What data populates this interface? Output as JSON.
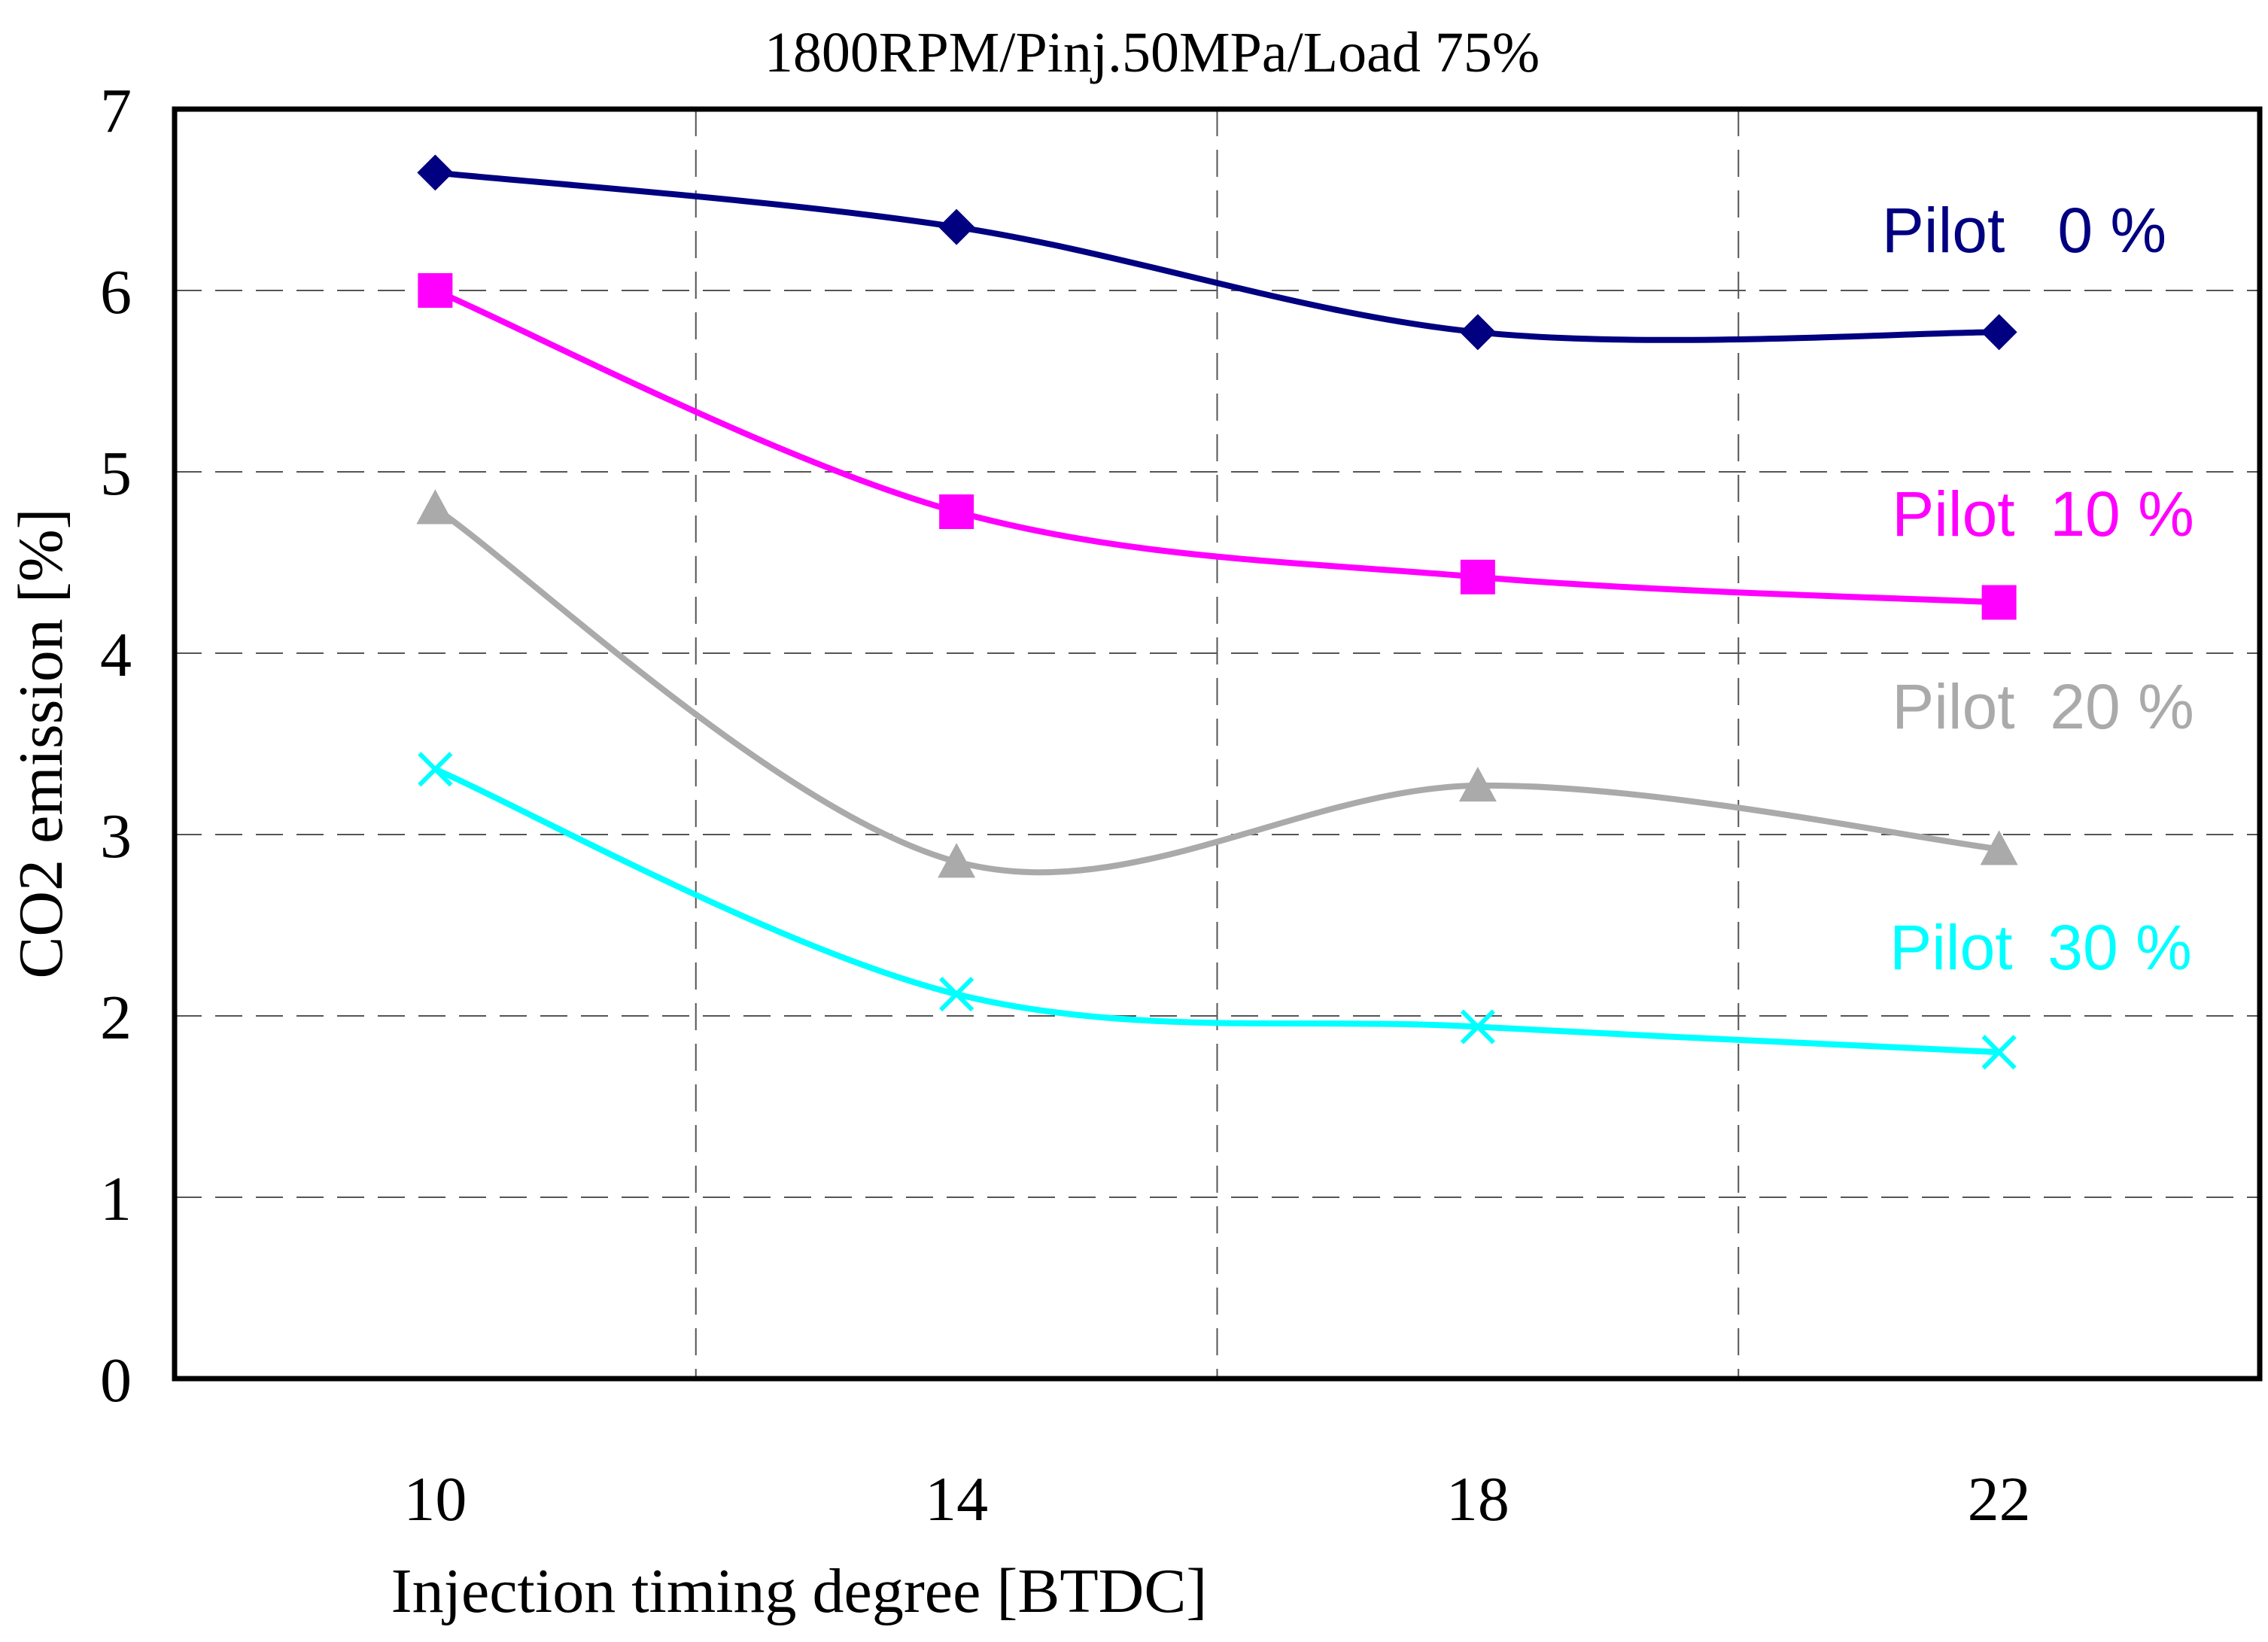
{
  "chart_data": {
    "type": "line",
    "title": "1800RPM/Pinj.50MPa/Load 75%",
    "xlabel": "Injection timing degree [BTDC]",
    "ylabel": "CO2 emission [%]",
    "x": [
      10,
      14,
      18,
      22
    ],
    "x_tick_labels": [
      "10",
      "14",
      "18",
      "22"
    ],
    "xlim": [
      8,
      24
    ],
    "x_gridlines": [
      12,
      16,
      20
    ],
    "ylim": [
      0,
      7
    ],
    "y_ticks": [
      0,
      1,
      2,
      3,
      4,
      5,
      6,
      7
    ],
    "y_tick_labels": [
      "0",
      "1",
      "2",
      "3",
      "4",
      "5",
      "6",
      "7"
    ],
    "grid": true,
    "smooth": true,
    "series": [
      {
        "name": "Pilot 0%",
        "label": "Pilot   0 %",
        "values": [
          6.65,
          6.35,
          5.77,
          5.77
        ],
        "color": "#000080",
        "marker": "diamond"
      },
      {
        "name": "Pilot 10%",
        "label": "Pilot  10 %",
        "values": [
          6.0,
          4.78,
          4.42,
          4.28
        ],
        "color": "#ff00ff",
        "marker": "square"
      },
      {
        "name": "Pilot 20%",
        "label": "Pilot  20 %",
        "values": [
          4.8,
          2.85,
          3.27,
          2.92
        ],
        "color": "#aaaaaa",
        "marker": "triangle"
      },
      {
        "name": "Pilot 30%",
        "label": "Pilot  30 %",
        "values": [
          3.36,
          2.12,
          1.94,
          1.8
        ],
        "color": "#00ffff",
        "marker": "x"
      }
    ]
  }
}
